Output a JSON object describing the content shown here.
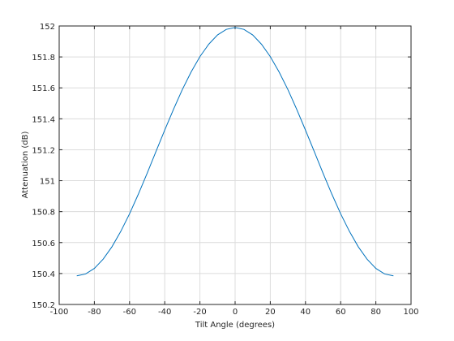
{
  "chart_data": {
    "type": "line",
    "xlabel": "Tilt Angle (degrees)",
    "ylabel": "Attenuation (dB)",
    "x": [
      -90,
      -85,
      -80,
      -75,
      -70,
      -65,
      -60,
      -55,
      -50,
      -45,
      -40,
      -35,
      -30,
      -25,
      -20,
      -15,
      -10,
      -5,
      0,
      5,
      10,
      15,
      20,
      25,
      30,
      35,
      40,
      45,
      50,
      55,
      60,
      65,
      70,
      75,
      80,
      85,
      90
    ],
    "series": [
      {
        "color": "#0072bd",
        "values": [
          150.385,
          150.397,
          150.433,
          150.493,
          150.573,
          150.672,
          150.786,
          150.913,
          151.048,
          151.188,
          151.327,
          151.462,
          151.589,
          151.703,
          151.802,
          151.882,
          151.942,
          151.978,
          151.99,
          151.978,
          151.942,
          151.882,
          151.802,
          151.703,
          151.589,
          151.462,
          151.327,
          151.188,
          151.048,
          150.913,
          150.786,
          150.672,
          150.573,
          150.493,
          150.433,
          150.397,
          150.385
        ]
      }
    ],
    "xlim": [
      -100,
      100
    ],
    "xticks": [
      -100,
      -80,
      -60,
      -40,
      -20,
      0,
      20,
      40,
      60,
      80,
      100
    ],
    "ylim": [
      150.2,
      152
    ],
    "yticks": [
      150.2,
      150.4,
      150.6,
      150.8,
      151,
      151.2,
      151.4,
      151.6,
      151.8,
      152
    ],
    "grid": true
  }
}
